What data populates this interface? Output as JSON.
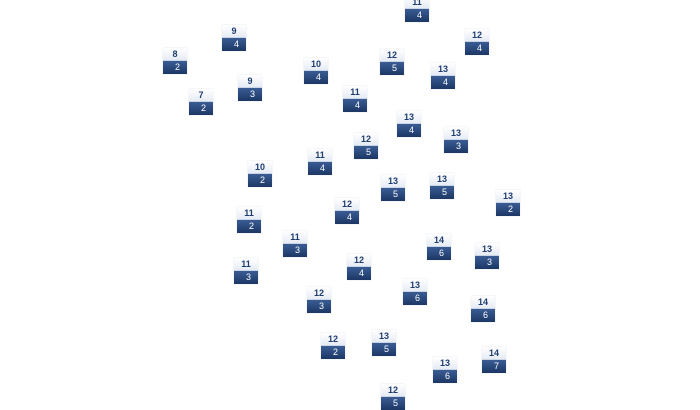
{
  "nodes": [
    {
      "top": 11,
      "bottom": 4
    },
    {
      "top": 9,
      "bottom": 4
    },
    {
      "top": 12,
      "bottom": 4
    },
    {
      "top": 8,
      "bottom": 2
    },
    {
      "top": 12,
      "bottom": 5
    },
    {
      "top": 10,
      "bottom": 4
    },
    {
      "top": 13,
      "bottom": 4
    },
    {
      "top": 9,
      "bottom": 3
    },
    {
      "top": 7,
      "bottom": 2
    },
    {
      "top": 11,
      "bottom": 4
    },
    {
      "top": 13,
      "bottom": 4
    },
    {
      "top": 12,
      "bottom": 5
    },
    {
      "top": 13,
      "bottom": 3
    },
    {
      "top": 11,
      "bottom": 4
    },
    {
      "top": 10,
      "bottom": 2
    },
    {
      "top": 13,
      "bottom": 5
    },
    {
      "top": 13,
      "bottom": 5
    },
    {
      "top": 13,
      "bottom": 2
    },
    {
      "top": 12,
      "bottom": 4
    },
    {
      "top": 11,
      "bottom": 2
    },
    {
      "top": 11,
      "bottom": 3
    },
    {
      "top": 14,
      "bottom": 6
    },
    {
      "top": 13,
      "bottom": 3
    },
    {
      "top": 11,
      "bottom": 3
    },
    {
      "top": 12,
      "bottom": 4
    },
    {
      "top": 13,
      "bottom": 6
    },
    {
      "top": 12,
      "bottom": 3
    },
    {
      "top": 14,
      "bottom": 6
    },
    {
      "top": 12,
      "bottom": 2
    },
    {
      "top": 13,
      "bottom": 5
    },
    {
      "top": 14,
      "bottom": 7
    },
    {
      "top": 13,
      "bottom": 6
    },
    {
      "top": 12,
      "bottom": 5
    }
  ]
}
